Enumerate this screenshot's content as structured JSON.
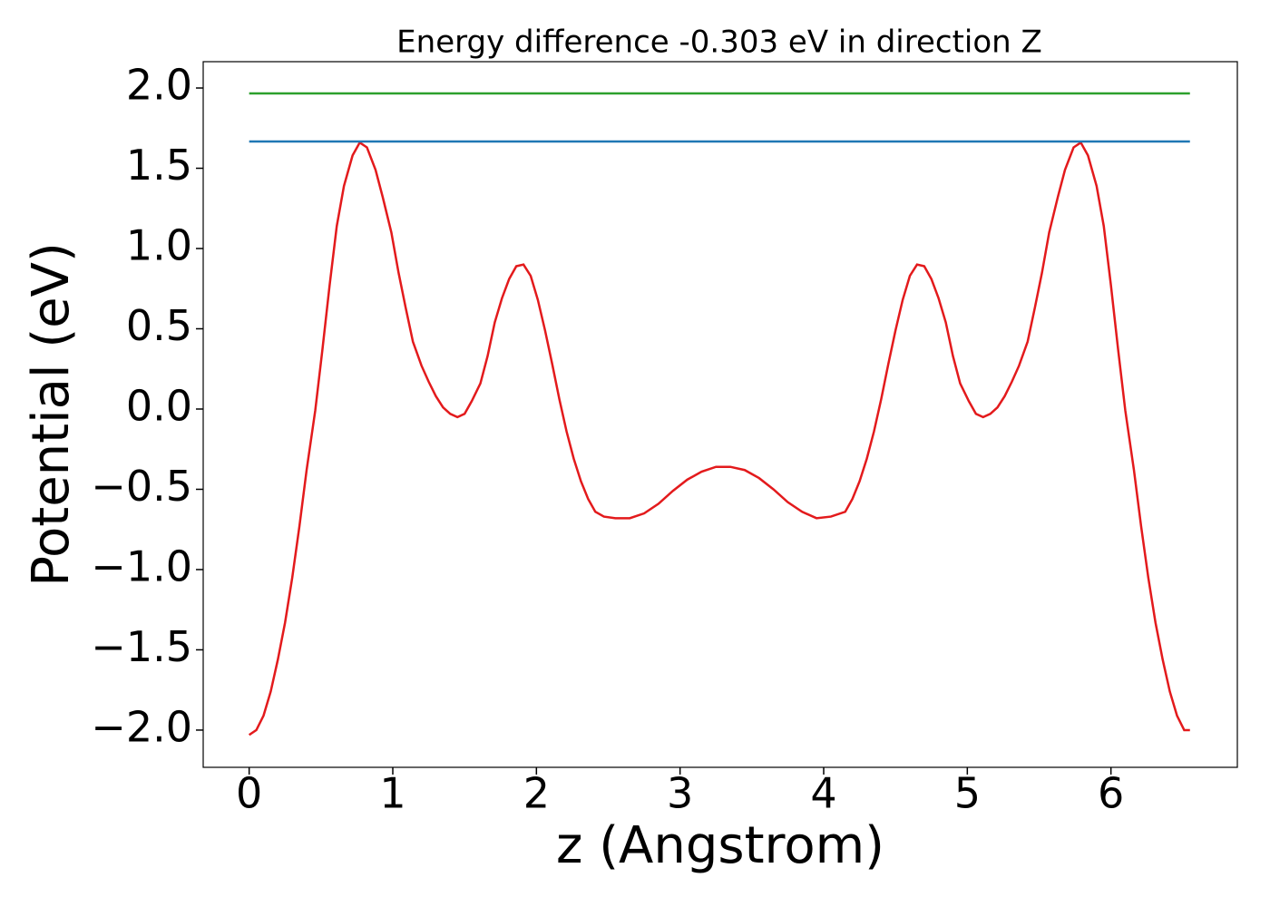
{
  "chart_data": {
    "type": "line",
    "title": "Energy difference -0.303 eV in direction Z",
    "xlabel": "z (Angstrom)",
    "ylabel": "Potential (eV)",
    "xlim": [
      -0.32,
      6.88
    ],
    "ylim": [
      -2.232,
      2.164
    ],
    "xticks": [
      0,
      1,
      2,
      3,
      4,
      5,
      6
    ],
    "yticks": [
      {
        "value": -2.0,
        "label": "−2.0"
      },
      {
        "value": -1.5,
        "label": "−1.5"
      },
      {
        "value": -1.0,
        "label": "−1.0"
      },
      {
        "value": -0.5,
        "label": "−0.5"
      },
      {
        "value": 0.0,
        "label": "0.0"
      },
      {
        "value": 0.5,
        "label": "0.5"
      },
      {
        "value": 1.0,
        "label": "1.0"
      },
      {
        "value": 1.5,
        "label": "1.5"
      },
      {
        "value": 2.0,
        "label": "2.0"
      }
    ],
    "grid": false,
    "series": [
      {
        "color": "#e31a1c",
        "x": [
          0,
          0.05,
          0.1,
          0.15,
          0.2,
          0.25,
          0.3,
          0.35,
          0.4,
          0.46,
          0.51,
          0.56,
          0.61,
          0.66,
          0.72,
          0.77,
          0.82,
          0.88,
          0.93,
          0.99,
          1.04,
          1.09,
          1.14,
          1.2,
          1.25,
          1.3,
          1.35,
          1.4,
          1.45,
          1.5,
          1.55,
          1.61,
          1.66,
          1.71,
          1.76,
          1.81,
          1.86,
          1.91,
          1.96,
          2.01,
          2.06,
          2.11,
          2.16,
          2.21,
          2.26,
          2.31,
          2.36,
          2.41,
          2.47,
          2.55,
          2.65,
          2.75,
          2.85,
          2.95,
          3.05,
          3.15,
          3.25,
          3.3,
          3.35,
          3.45,
          3.55,
          3.65,
          3.75,
          3.85,
          3.95,
          4.05,
          4.15,
          4.2,
          4.25,
          4.3,
          4.35,
          4.4,
          4.45,
          4.5,
          4.55,
          4.6,
          4.65,
          4.7,
          4.75,
          4.8,
          4.85,
          4.9,
          4.95,
          5.01,
          5.06,
          5.11,
          5.16,
          5.21,
          5.26,
          5.31,
          5.36,
          5.42,
          5.47,
          5.52,
          5.57,
          5.63,
          5.68,
          5.74,
          5.79,
          5.84,
          5.9,
          5.95,
          6.0,
          6.05,
          6.1,
          6.16,
          6.21,
          6.26,
          6.31,
          6.36,
          6.41,
          6.46,
          6.51,
          6.55
        ],
        "values": [
          -2.03,
          -2.0,
          -1.91,
          -1.76,
          -1.56,
          -1.33,
          -1.05,
          -0.73,
          -0.38,
          -0.01,
          0.37,
          0.77,
          1.14,
          1.39,
          1.58,
          1.66,
          1.63,
          1.49,
          1.32,
          1.1,
          0.85,
          0.63,
          0.42,
          0.27,
          0.17,
          0.08,
          0.01,
          -0.03,
          -0.05,
          -0.03,
          0.05,
          0.16,
          0.33,
          0.54,
          0.69,
          0.81,
          0.89,
          0.9,
          0.83,
          0.68,
          0.49,
          0.28,
          0.06,
          -0.14,
          -0.31,
          -0.45,
          -0.56,
          -0.64,
          -0.67,
          -0.68,
          -0.68,
          -0.65,
          -0.59,
          -0.51,
          -0.44,
          -0.39,
          -0.36,
          -0.36,
          -0.36,
          -0.38,
          -0.43,
          -0.5,
          -0.58,
          -0.64,
          -0.68,
          -0.67,
          -0.64,
          -0.56,
          -0.45,
          -0.31,
          -0.14,
          0.06,
          0.28,
          0.49,
          0.68,
          0.83,
          0.9,
          0.89,
          0.81,
          0.69,
          0.54,
          0.33,
          0.16,
          0.05,
          -0.03,
          -0.05,
          -0.03,
          0.01,
          0.08,
          0.17,
          0.27,
          0.42,
          0.63,
          0.85,
          1.1,
          1.32,
          1.49,
          1.63,
          1.66,
          1.58,
          1.39,
          1.14,
          0.77,
          0.37,
          -0.01,
          -0.38,
          -0.73,
          -1.05,
          -1.33,
          -1.56,
          -1.76,
          -1.91,
          -2.0,
          -2.0
        ]
      },
      {
        "color": "#1f77b4",
        "x": [
          0,
          6.55
        ],
        "values": [
          1.667,
          1.667
        ]
      },
      {
        "color": "#2ca02c",
        "x": [
          0,
          6.55
        ],
        "values": [
          1.966,
          1.966
        ]
      }
    ]
  }
}
